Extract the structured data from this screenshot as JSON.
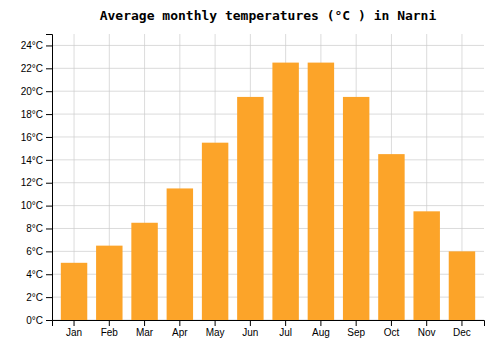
{
  "chart_data": {
    "type": "bar",
    "title": "Average monthly temperatures (°C ) in Narni",
    "categories": [
      "Jan",
      "Feb",
      "Mar",
      "Apr",
      "May",
      "Jun",
      "Jul",
      "Aug",
      "Sep",
      "Oct",
      "Nov",
      "Dec"
    ],
    "values": [
      5.0,
      6.5,
      8.5,
      11.5,
      15.5,
      19.5,
      22.5,
      22.5,
      19.5,
      14.5,
      9.5,
      6.0
    ],
    "color": "#FCA429",
    "ylim": [
      0,
      25
    ],
    "yticks": [
      {
        "value": 0,
        "label": "0°C"
      },
      {
        "value": 2,
        "label": "2°C"
      },
      {
        "value": 4,
        "label": "4°C"
      },
      {
        "value": 6,
        "label": "6°C"
      },
      {
        "value": 8,
        "label": "8°C"
      },
      {
        "value": 10,
        "label": "10°C"
      },
      {
        "value": 12,
        "label": "12°C"
      },
      {
        "value": 14,
        "label": "14°C"
      },
      {
        "value": 16,
        "label": "16°C"
      },
      {
        "value": 18,
        "label": "18°C"
      },
      {
        "value": 20,
        "label": "20°C"
      },
      {
        "value": 22,
        "label": "22°C"
      },
      {
        "value": 24,
        "label": "24°C"
      }
    ],
    "grid": true
  }
}
